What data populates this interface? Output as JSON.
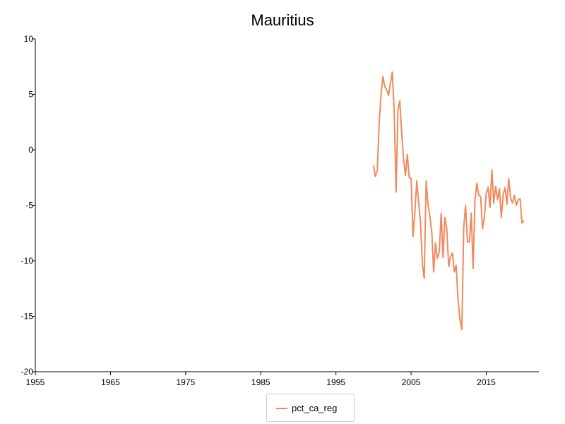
{
  "chart_data": {
    "type": "line",
    "title": "Mauritius",
    "xlabel": "",
    "ylabel": "",
    "xlim": [
      1955,
      2022
    ],
    "ylim": [
      -20,
      10
    ],
    "x_ticks": [
      1955,
      1965,
      1975,
      1985,
      1995,
      2005,
      2015
    ],
    "y_ticks": [
      10,
      5,
      0,
      -5,
      -10,
      -15,
      -20
    ],
    "grid": false,
    "legend_position": "bottom-center",
    "series": [
      {
        "name": "pct_ca_reg",
        "color": "#f08a5d",
        "x": [
          2000.0,
          2000.25,
          2000.5,
          2000.75,
          2001.0,
          2001.25,
          2001.5,
          2001.75,
          2002.0,
          2002.25,
          2002.5,
          2002.75,
          2003.0,
          2003.25,
          2003.5,
          2003.75,
          2004.0,
          2004.25,
          2004.5,
          2004.75,
          2005.0,
          2005.25,
          2005.5,
          2005.75,
          2006.0,
          2006.25,
          2006.5,
          2006.75,
          2007.0,
          2007.25,
          2007.5,
          2007.75,
          2008.0,
          2008.25,
          2008.5,
          2008.75,
          2009.0,
          2009.25,
          2009.5,
          2009.75,
          2010.0,
          2010.25,
          2010.5,
          2010.75,
          2011.0,
          2011.25,
          2011.5,
          2011.75,
          2012.0,
          2012.25,
          2012.5,
          2012.75,
          2013.0,
          2013.25,
          2013.5,
          2013.75,
          2014.0,
          2014.25,
          2014.5,
          2014.75,
          2015.0,
          2015.25,
          2015.5,
          2015.75,
          2016.0,
          2016.25,
          2016.5,
          2016.75,
          2017.0,
          2017.25,
          2017.5,
          2017.75,
          2018.0,
          2018.25,
          2018.5,
          2018.75,
          2019.0,
          2019.25,
          2019.5,
          2019.75,
          2020.0
        ],
        "values": [
          -1.4,
          -2.4,
          -1.9,
          2.4,
          5.0,
          6.6,
          5.7,
          5.4,
          4.9,
          6.0,
          7.0,
          3.6,
          -3.8,
          3.6,
          4.4,
          1.5,
          -0.8,
          -2.3,
          -0.4,
          -2.5,
          -2.6,
          -7.8,
          -5.6,
          -2.8,
          -4.7,
          -6.5,
          -10.3,
          -11.6,
          -2.8,
          -4.9,
          -6.0,
          -7.4,
          -11.0,
          -8.4,
          -9.8,
          -9.2,
          -5.7,
          -9.7,
          -6.1,
          -7.1,
          -10.5,
          -9.6,
          -9.3,
          -11.0,
          -10.4,
          -13.5,
          -15.3,
          -16.2,
          -7.0,
          -5.0,
          -8.3,
          -8.3,
          -5.7,
          -10.7,
          -4.5,
          -3.0,
          -4.1,
          -4.2,
          -7.1,
          -6.1,
          -3.9,
          -3.4,
          -5.2,
          -1.8,
          -4.8,
          -3.3,
          -4.5,
          -3.5,
          -6.1,
          -4.0,
          -3.4,
          -4.9,
          -2.6,
          -4.4,
          -4.8,
          -4.1,
          -5.0,
          -4.5,
          -4.4,
          -6.6,
          -6.4
        ]
      }
    ]
  }
}
